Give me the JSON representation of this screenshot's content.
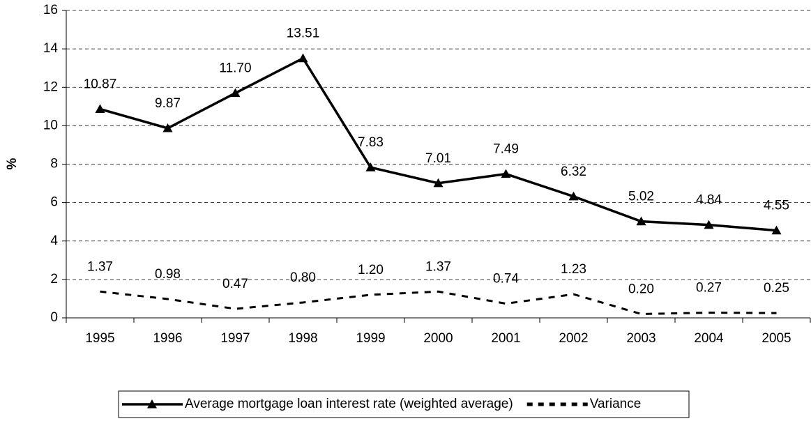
{
  "chart_data": {
    "type": "line",
    "y_label": "%",
    "categories": [
      "1995",
      "1996",
      "1997",
      "1998",
      "1999",
      "2000",
      "2001",
      "2002",
      "2003",
      "2004",
      "2005"
    ],
    "series": [
      {
        "name": "Average mortgage loan interest rate (weighted average)",
        "color": "#000000",
        "style": "solid",
        "marker": "triangle",
        "values": [
          10.87,
          9.87,
          11.7,
          13.51,
          7.83,
          7.01,
          7.49,
          6.32,
          5.02,
          4.84,
          4.55
        ],
        "value_labels": [
          "10.87",
          "9.87",
          "11.70",
          "13.51",
          "7.83",
          "7.01",
          "7.49",
          "6.32",
          "5.02",
          "4.84",
          "4.55"
        ]
      },
      {
        "name": "Variance",
        "color": "#000000",
        "style": "dashed",
        "marker": "none",
        "values": [
          1.37,
          0.98,
          0.47,
          0.8,
          1.2,
          1.37,
          0.74,
          1.23,
          0.2,
          0.27,
          0.25
        ],
        "value_labels": [
          "1.37",
          "0.98",
          "0.47",
          "0.80",
          "1.20",
          "1.37",
          "0.74",
          "1.23",
          "0.20",
          "0.27",
          "0.25"
        ]
      }
    ],
    "ylim": [
      0,
      16
    ],
    "yticks": [
      0,
      2,
      4,
      6,
      8,
      10,
      12,
      14,
      16
    ],
    "grid": true,
    "legend": "bottom"
  }
}
